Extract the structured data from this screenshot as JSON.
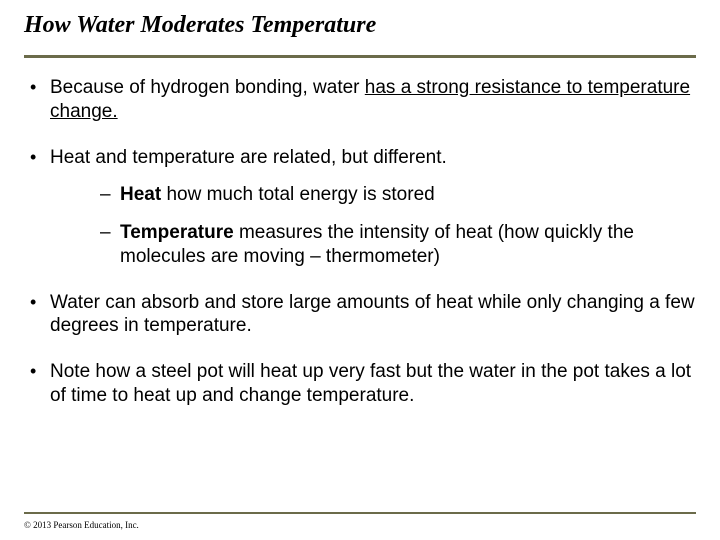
{
  "title": "How Water Moderates Temperature",
  "bullets": {
    "b1_pre": "Because of hydrogen bonding, water ",
    "b1_under": "has a strong resistance to temperature change.",
    "b2": "Heat and temperature are related, but different.",
    "b2a_bold": "Heat",
    "b2a_rest": " how much total energy is stored",
    "b2b_bold": "Temperature",
    "b2b_rest": " measures the intensity of heat (how quickly the molecules are moving – thermometer)",
    "b3": "Water can absorb and store large amounts of heat while only changing a few degrees in temperature.",
    "b4": "Note how a steel pot will heat up very fast but the water in the pot takes a lot of time to heat up and change temperature."
  },
  "copyright": "© 2013 Pearson Education, Inc.",
  "colors": {
    "rule": "#6b6b4a",
    "text": "#000000",
    "background": "#ffffff"
  }
}
